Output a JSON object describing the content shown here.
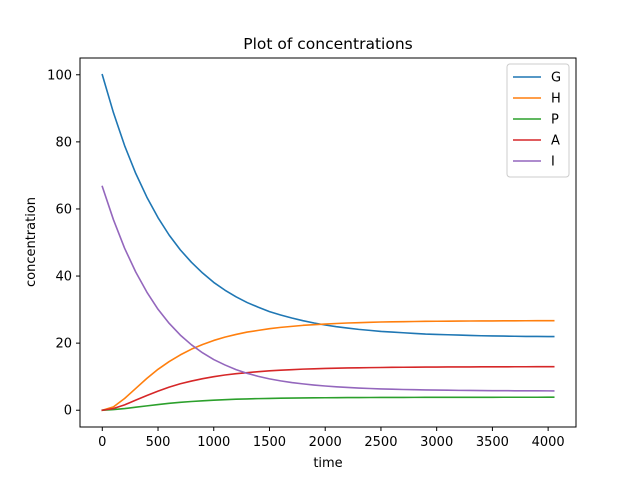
{
  "chart_data": {
    "type": "line",
    "title": "Plot of concentrations",
    "xlabel": "time",
    "ylabel": "concentration",
    "xlim": [
      -200,
      4250
    ],
    "ylim": [
      -5,
      105
    ],
    "xticks": [
      0,
      500,
      1000,
      1500,
      2000,
      2500,
      3000,
      3500,
      4000
    ],
    "yticks": [
      0,
      20,
      40,
      60,
      80,
      100
    ],
    "grid": false,
    "legend_position": "top-right",
    "x": [
      0,
      100,
      200,
      300,
      400,
      500,
      600,
      700,
      800,
      900,
      1000,
      1100,
      1200,
      1300,
      1400,
      1500,
      1600,
      1700,
      1800,
      1900,
      2000,
      2100,
      2200,
      2300,
      2400,
      2500,
      2600,
      2700,
      2800,
      2900,
      3000,
      3100,
      3200,
      3300,
      3400,
      3500,
      3600,
      3700,
      3800,
      3900,
      4000,
      4050
    ],
    "series": [
      {
        "name": "G",
        "color": "#1f77b4",
        "values": [
          100,
          88.7,
          78.9,
          70.6,
          63.5,
          57.4,
          52.2,
          47.8,
          44.1,
          40.9,
          38.1,
          35.8,
          33.8,
          32.1,
          30.7,
          29.4,
          28.4,
          27.5,
          26.7,
          26.0,
          25.4,
          24.9,
          24.5,
          24.1,
          23.8,
          23.5,
          23.3,
          23.1,
          22.9,
          22.7,
          22.6,
          22.5,
          22.4,
          22.3,
          22.2,
          22.15,
          22.1,
          22.05,
          22.0,
          22.0,
          21.95,
          21.95
        ]
      },
      {
        "name": "H",
        "color": "#ff7f0e",
        "values": [
          0,
          1.0,
          3.5,
          6.5,
          9.5,
          12.2,
          14.5,
          16.5,
          18.2,
          19.6,
          20.8,
          21.8,
          22.6,
          23.3,
          23.8,
          24.3,
          24.7,
          25.0,
          25.3,
          25.5,
          25.7,
          25.85,
          26.0,
          26.1,
          26.2,
          26.3,
          26.35,
          26.4,
          26.45,
          26.5,
          26.52,
          26.55,
          26.57,
          26.6,
          26.62,
          26.63,
          26.65,
          26.66,
          26.67,
          26.68,
          26.69,
          26.7
        ]
      },
      {
        "name": "P",
        "color": "#2ca02c",
        "values": [
          0,
          0.2,
          0.5,
          0.9,
          1.3,
          1.7,
          2.05,
          2.35,
          2.6,
          2.8,
          3.0,
          3.15,
          3.28,
          3.38,
          3.46,
          3.53,
          3.58,
          3.63,
          3.67,
          3.7,
          3.72,
          3.74,
          3.76,
          3.78,
          3.79,
          3.8,
          3.81,
          3.82,
          3.83,
          3.84,
          3.84,
          3.85,
          3.85,
          3.86,
          3.86,
          3.86,
          3.87,
          3.87,
          3.87,
          3.87,
          3.88,
          3.88
        ]
      },
      {
        "name": "A",
        "color": "#d62728",
        "values": [
          0,
          0.5,
          1.6,
          3.0,
          4.4,
          5.7,
          6.9,
          7.9,
          8.7,
          9.4,
          10.0,
          10.5,
          10.9,
          11.2,
          11.5,
          11.75,
          11.95,
          12.1,
          12.25,
          12.35,
          12.45,
          12.53,
          12.6,
          12.65,
          12.7,
          12.74,
          12.78,
          12.81,
          12.84,
          12.86,
          12.88,
          12.9,
          12.91,
          12.92,
          12.93,
          12.94,
          12.95,
          12.96,
          12.96,
          12.97,
          12.97,
          12.98
        ]
      },
      {
        "name": "I",
        "color": "#9467bd",
        "values": [
          66.7,
          56.8,
          48.3,
          41.2,
          35.2,
          30.1,
          25.9,
          22.4,
          19.5,
          17.1,
          15.1,
          13.5,
          12.1,
          11.0,
          10.1,
          9.35,
          8.75,
          8.25,
          7.85,
          7.5,
          7.22,
          6.98,
          6.78,
          6.62,
          6.48,
          6.36,
          6.26,
          6.18,
          6.11,
          6.05,
          6.0,
          5.96,
          5.92,
          5.89,
          5.86,
          5.84,
          5.82,
          5.8,
          5.79,
          5.78,
          5.77,
          5.76
        ]
      }
    ]
  }
}
